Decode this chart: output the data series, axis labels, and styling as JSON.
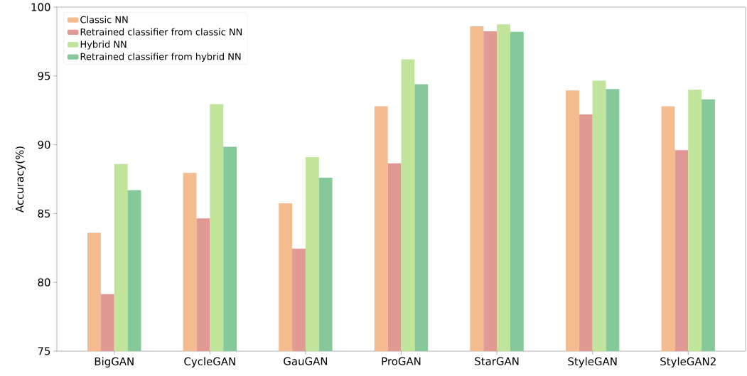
{
  "chart_data": {
    "type": "bar",
    "ylabel": "Accuracy(%)",
    "categories": [
      "BigGAN",
      "CycleGAN",
      "GauGAN",
      "ProGAN",
      "StarGAN",
      "StyleGAN",
      "StyleGAN2"
    ],
    "series": [
      {
        "name": "Classic NN",
        "color": "#f4bb8f",
        "values": [
          83.6,
          87.95,
          85.75,
          92.8,
          98.6,
          93.95,
          92.8
        ]
      },
      {
        "name": "Retrained classifier from classic NN",
        "color": "#e09a93",
        "values": [
          79.15,
          84.65,
          82.45,
          88.65,
          98.25,
          92.2,
          89.6
        ]
      },
      {
        "name": "Hybrid NN",
        "color": "#bfe49a",
        "values": [
          88.6,
          92.95,
          89.1,
          96.2,
          98.75,
          94.65,
          94.0
        ]
      },
      {
        "name": "Retrained classifier from hybrid NN",
        "color": "#85c99b",
        "values": [
          86.7,
          89.85,
          87.6,
          94.4,
          98.2,
          94.05,
          93.3
        ]
      }
    ],
    "ylim": [
      75,
      100
    ],
    "yticks": [
      75,
      80,
      85,
      90,
      95,
      100
    ],
    "grid": false,
    "legend": "top left"
  }
}
